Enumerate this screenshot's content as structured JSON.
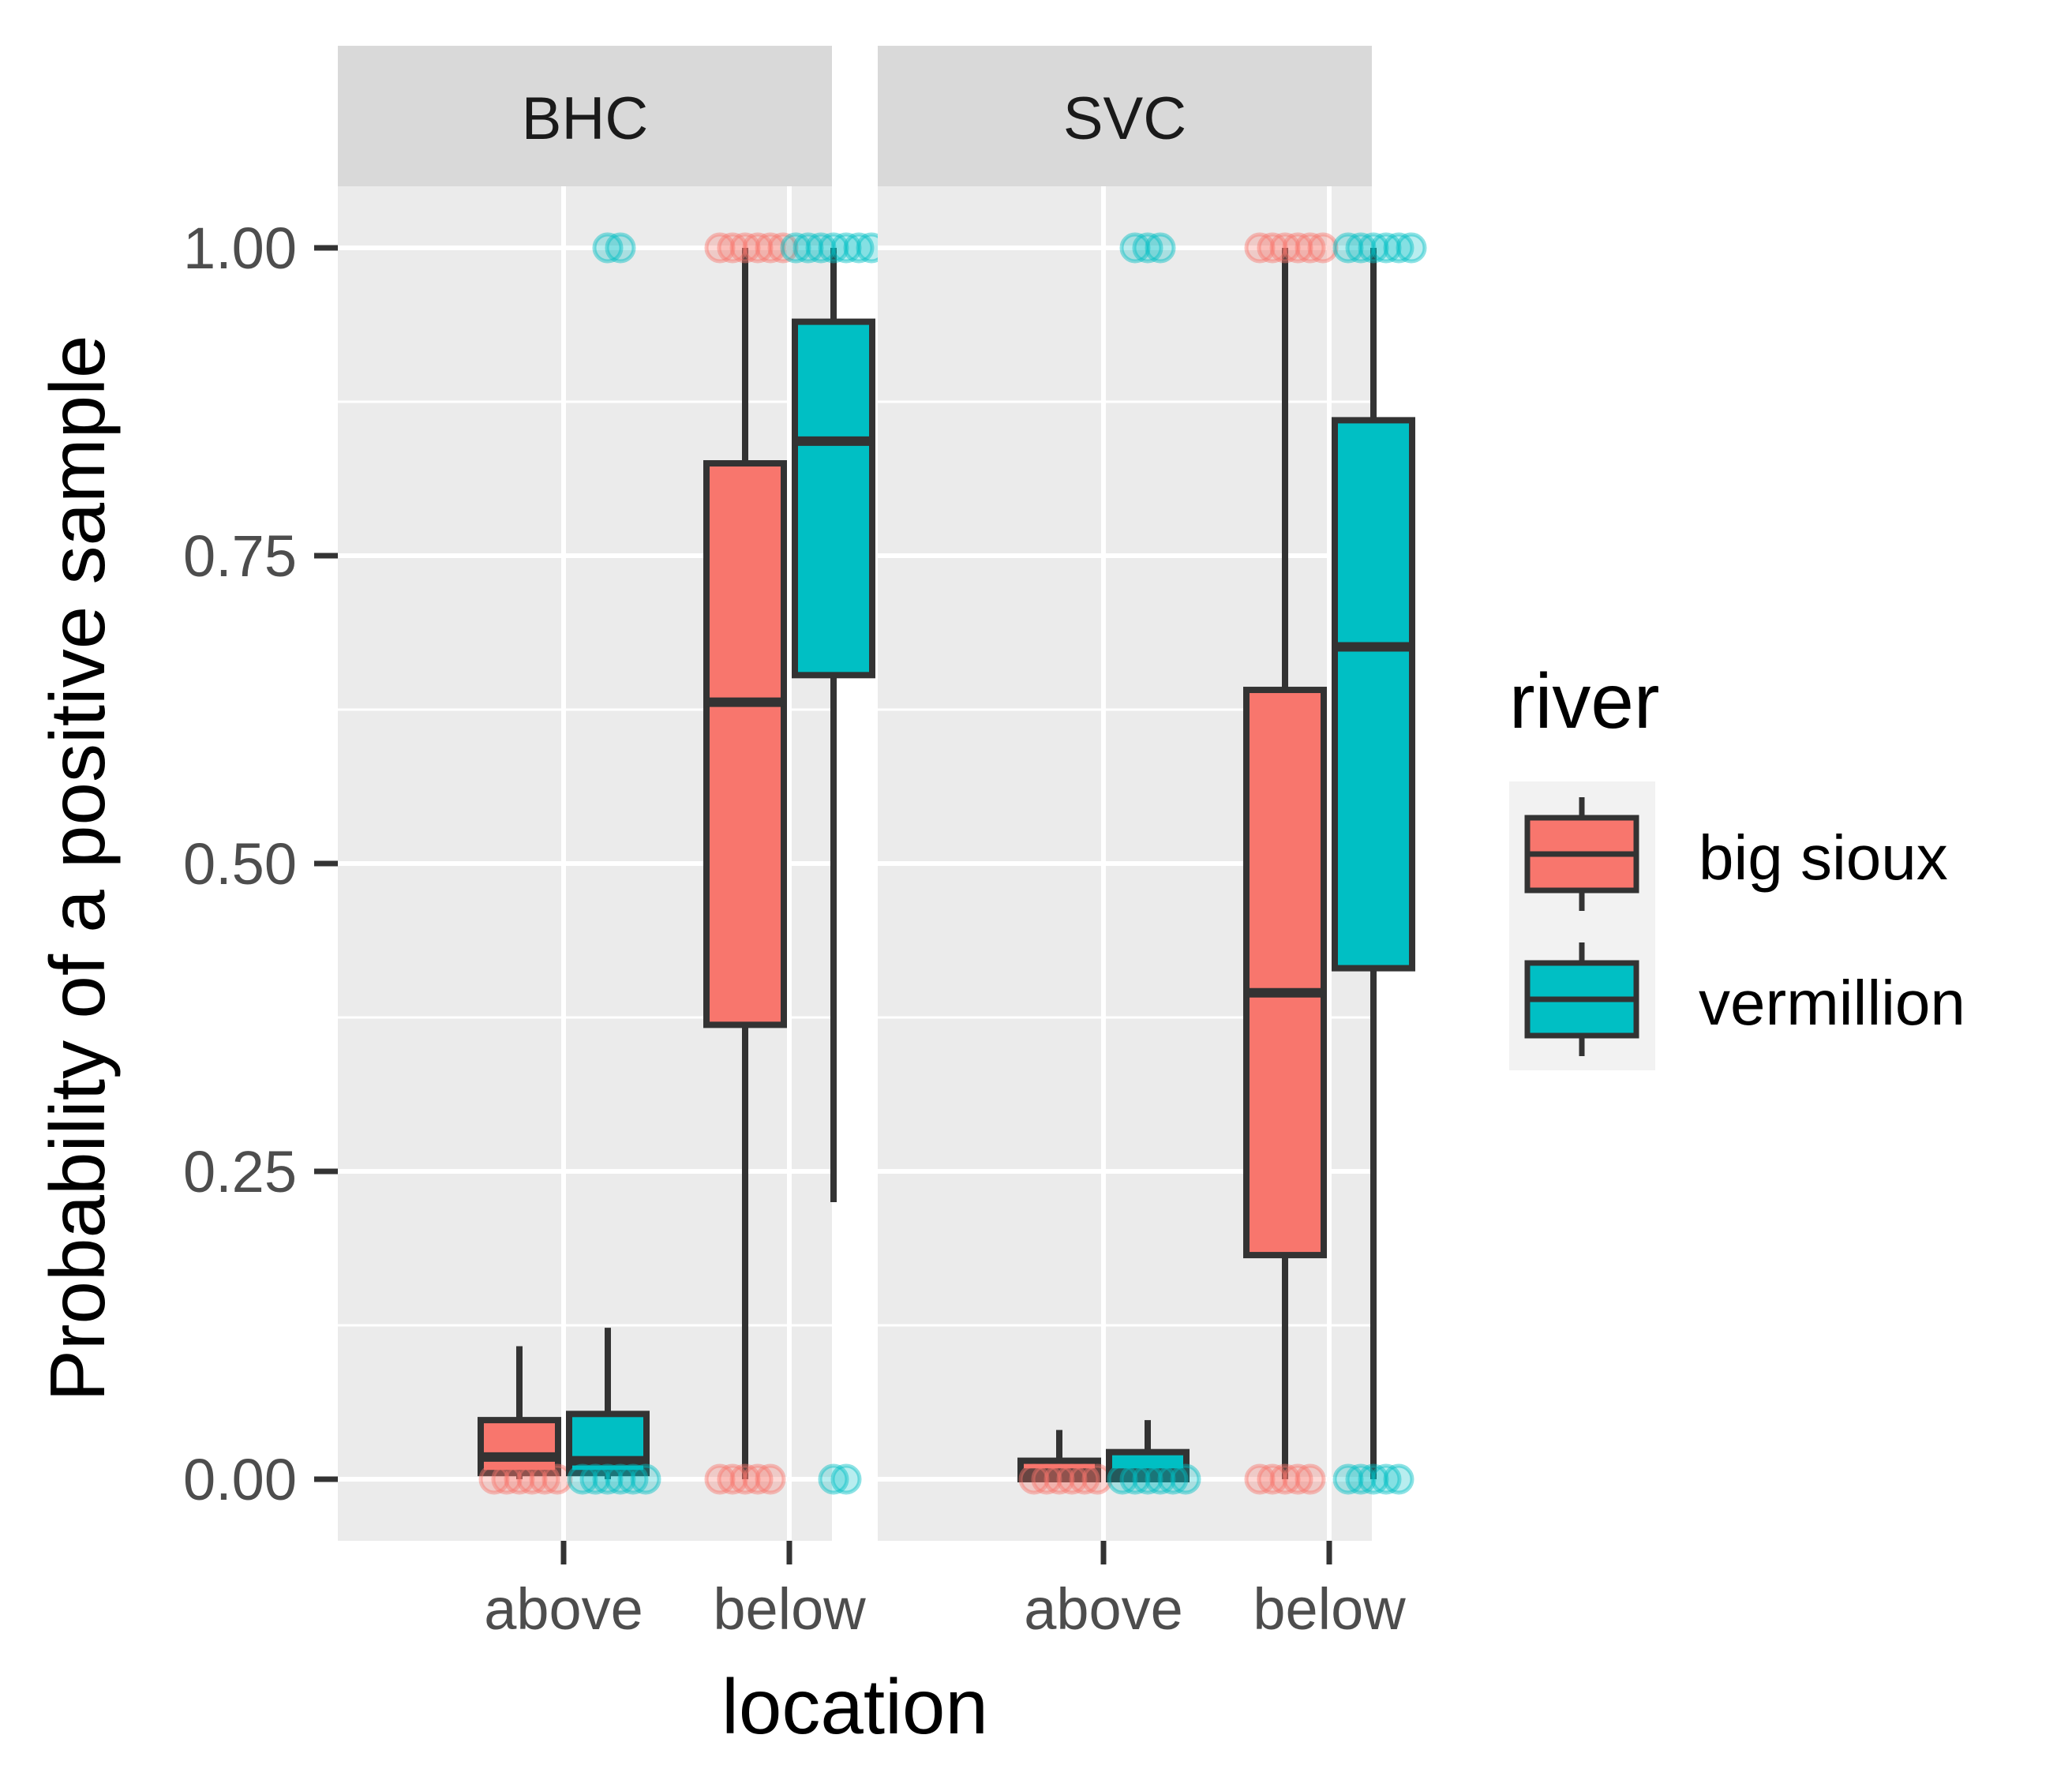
{
  "chart_data": {
    "type": "boxplot",
    "xlabel": "location",
    "ylabel": "Probability of a positive sample",
    "ylim": [
      -0.05,
      1.05
    ],
    "y_ticks": [
      "0.00",
      "0.25",
      "0.50",
      "0.75",
      "1.00"
    ],
    "y_tick_values": [
      0,
      0.25,
      0.5,
      0.75,
      1.0
    ],
    "categories": [
      "above",
      "below"
    ],
    "grid": true,
    "legend": {
      "title": "river",
      "position": "right",
      "items": [
        {
          "label": "big sioux",
          "color": "#F8766D"
        },
        {
          "label": "vermillion",
          "color": "#00BFC4"
        }
      ]
    },
    "panels": [
      {
        "label": "BHC",
        "boxes": [
          {
            "location": "above",
            "river": "big sioux",
            "lower": 0,
            "q1": 0.005,
            "median": 0.018,
            "q3": 0.048,
            "upper": 0.108,
            "outliers": [
              0,
              0,
              0,
              0,
              0,
              0
            ]
          },
          {
            "location": "above",
            "river": "vermillion",
            "lower": 0,
            "q1": 0.005,
            "median": 0.015,
            "q3": 0.053,
            "upper": 0.123,
            "outliers": [
              0,
              0,
              0,
              0,
              0,
              0,
              1,
              1
            ]
          },
          {
            "location": "below",
            "river": "big sioux",
            "lower": 0,
            "q1": 0.369,
            "median": 0.631,
            "q3": 0.825,
            "upper": 1.0,
            "outliers": [
              1,
              1,
              1,
              1,
              1,
              1,
              0,
              0,
              0,
              0,
              0
            ]
          },
          {
            "location": "below",
            "river": "vermillion",
            "lower": 0.225,
            "q1": 0.653,
            "median": 0.843,
            "q3": 0.94,
            "upper": 1.0,
            "outliers": [
              1,
              1,
              1,
              1,
              1,
              1,
              1,
              0,
              0
            ]
          }
        ]
      },
      {
        "label": "SVC",
        "boxes": [
          {
            "location": "above",
            "river": "big sioux",
            "lower": 0,
            "q1": 0,
            "median": 0.005,
            "q3": 0.015,
            "upper": 0.04,
            "outliers": [
              0,
              0,
              0,
              0,
              0,
              0
            ]
          },
          {
            "location": "above",
            "river": "vermillion",
            "lower": 0,
            "q1": 0,
            "median": 0.005,
            "q3": 0.022,
            "upper": 0.048,
            "outliers": [
              0,
              0,
              0,
              0,
              0,
              0,
              1,
              1,
              1
            ]
          },
          {
            "location": "below",
            "river": "big sioux",
            "lower": 0,
            "q1": 0.182,
            "median": 0.395,
            "q3": 0.641,
            "upper": 1.0,
            "outliers": [
              1,
              1,
              1,
              1,
              1,
              1,
              0,
              0,
              0,
              0,
              0
            ]
          },
          {
            "location": "below",
            "river": "vermillion",
            "lower": 0,
            "q1": 0.415,
            "median": 0.676,
            "q3": 0.86,
            "upper": 1.0,
            "outliers": [
              1,
              1,
              1,
              1,
              1,
              1,
              0,
              0,
              0,
              0,
              0
            ]
          }
        ]
      }
    ]
  }
}
